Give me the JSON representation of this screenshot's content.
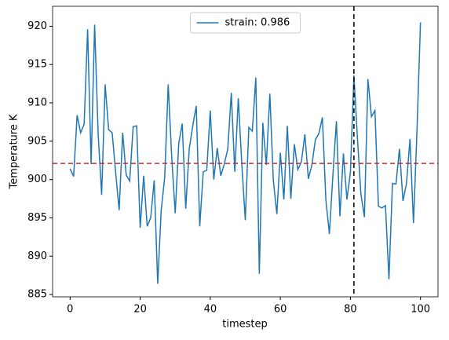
{
  "chart_data": {
    "type": "line",
    "xlabel": "timestep",
    "ylabel": "Temperature K",
    "x": [
      0,
      1,
      2,
      3,
      4,
      5,
      6,
      7,
      8,
      9,
      10,
      11,
      12,
      13,
      14,
      15,
      16,
      17,
      18,
      19,
      20,
      21,
      22,
      23,
      24,
      25,
      26,
      27,
      28,
      29,
      30,
      31,
      32,
      33,
      34,
      35,
      36,
      37,
      38,
      39,
      40,
      41,
      42,
      43,
      44,
      45,
      46,
      47,
      48,
      49,
      50,
      51,
      52,
      53,
      54,
      55,
      56,
      57,
      58,
      59,
      60,
      61,
      62,
      63,
      64,
      65,
      66,
      67,
      68,
      69,
      70,
      71,
      72,
      73,
      74,
      75,
      76,
      77,
      78,
      79,
      80,
      81,
      82,
      83,
      84,
      85,
      86,
      87,
      88,
      89,
      90,
      91,
      92,
      93,
      94,
      95,
      96,
      97,
      98,
      99,
      100
    ],
    "series": [
      {
        "name": "strain: 0.986",
        "color": "#1f77b4",
        "values": [
          901.4,
          900.4,
          908.4,
          906.1,
          907.2,
          919.6,
          902.0,
          920.2,
          906.0,
          898.0,
          912.4,
          906.5,
          906.1,
          900.9,
          896.0,
          906.1,
          900.6,
          899.8,
          906.9,
          907.0,
          893.7,
          900.5,
          893.9,
          895.0,
          899.9,
          886.4,
          896.0,
          900.3,
          912.4,
          902.9,
          895.6,
          904.7,
          907.3,
          896.2,
          904.0,
          907.0,
          909.6,
          893.9,
          901.0,
          901.2,
          909.0,
          900.0,
          904.1,
          900.5,
          902.0,
          904.0,
          911.3,
          901.0,
          910.6,
          902.0,
          894.7,
          906.8,
          906.3,
          913.3,
          887.7,
          907.4,
          901.9,
          911.2,
          899.9,
          895.5,
          903.5,
          897.4,
          907.0,
          897.5,
          904.6,
          901.3,
          902.3,
          905.9,
          900.1,
          901.9,
          905.2,
          906.0,
          908.1,
          897.3,
          892.9,
          900.6,
          907.6,
          895.2,
          903.4,
          897.4,
          900.9,
          913.6,
          905.4,
          898.1,
          895.1,
          913.1,
          908.2,
          909.0,
          896.5,
          896.3,
          896.6,
          887.0,
          899.5,
          899.4,
          904.0,
          897.2,
          899.5,
          905.3,
          894.3,
          906.4,
          920.5
        ]
      }
    ],
    "hline": {
      "value": 902.1,
      "color": "#d62728"
    },
    "vline": {
      "value": 81,
      "color": "#000000"
    },
    "xlim": [
      -5,
      105
    ],
    "xticks": [
      0,
      20,
      40,
      60,
      80,
      100
    ],
    "ylim": [
      884.7,
      922.6
    ],
    "yticks": [
      885,
      890,
      895,
      900,
      905,
      910,
      915,
      920
    ],
    "legend": "upper center"
  }
}
